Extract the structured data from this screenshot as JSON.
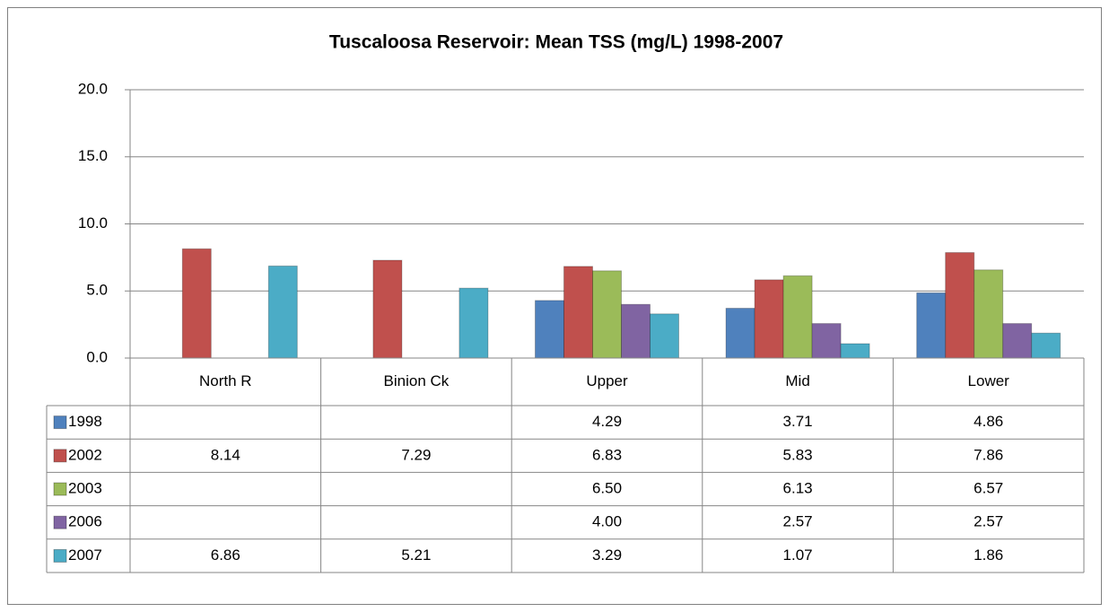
{
  "chart_data": {
    "type": "bar",
    "title": "Tuscaloosa Reservoir: Mean TSS (mg/L) 1998-2007",
    "categories": [
      "North R",
      "Binion Ck",
      "Upper",
      "Mid",
      "Lower"
    ],
    "series": [
      {
        "name": "1998",
        "color": "#4f81bd",
        "values": [
          null,
          null,
          4.29,
          3.71,
          4.86
        ],
        "value_labels": [
          null,
          null,
          "4.29",
          "3.71",
          "4.86"
        ]
      },
      {
        "name": "2002",
        "color": "#c0504d",
        "values": [
          8.14,
          7.29,
          6.83,
          5.83,
          7.86
        ],
        "value_labels": [
          "8.14",
          "7.29",
          "6.83",
          "5.83",
          "7.86"
        ]
      },
      {
        "name": "2003",
        "color": "#9bbb59",
        "values": [
          null,
          null,
          6.5,
          6.13,
          6.57
        ],
        "value_labels": [
          null,
          null,
          "6.50",
          "6.13",
          "6.57"
        ]
      },
      {
        "name": "2006",
        "color": "#8064a2",
        "values": [
          null,
          null,
          4,
          2.57,
          2.57
        ],
        "value_labels": [
          null,
          null,
          "4.00",
          "2.57",
          "2.57"
        ]
      },
      {
        "name": "2007",
        "color": "#4bacc6",
        "values": [
          6.86,
          5.21,
          3.29,
          1.07,
          1.86
        ],
        "value_labels": [
          "6.86",
          "5.21",
          "3.29",
          "1.07",
          "1.86"
        ]
      }
    ],
    "ylim": [
      0,
      20
    ],
    "yticks": [
      {
        "value": 0,
        "label": "0.0"
      },
      {
        "value": 5,
        "label": "5.0"
      },
      {
        "value": 10,
        "label": "10.0"
      },
      {
        "value": 15,
        "label": "15.0"
      },
      {
        "value": 20,
        "label": "20.0"
      }
    ],
    "grid": true
  }
}
